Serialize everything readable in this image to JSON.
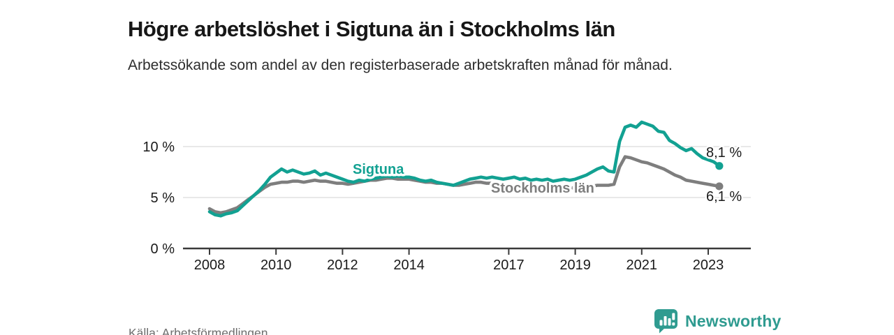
{
  "header": {
    "title": "Högre arbetslöshet i Sigtuna än i Stockholms län",
    "subtitle": "Arbetssökande som andel av den registerbaserade arbetskraften månad för månad."
  },
  "footer": {
    "source": "Källa: Arbetsförmedlingen",
    "brand": "Newsworthy",
    "brand_color": "#2f9b90",
    "brand_icon": "bar-chart-speech-bubble-icon"
  },
  "chart_data": {
    "type": "line",
    "title": "Högre arbetslöshet i Sigtuna än i Stockholms län",
    "subtitle": "Arbetssökande som andel av den registerbaserade arbetskraften månad för månad.",
    "unit": "%",
    "grid": "horizontal",
    "legend": "inline-labels",
    "x_start_year": 2008.0,
    "x_step_years": 0.1666667,
    "x_axis": {
      "ticks": [
        {
          "label": "2008",
          "value": 2008
        },
        {
          "label": "2010",
          "value": 2010
        },
        {
          "label": "2012",
          "value": 2012
        },
        {
          "label": "2014",
          "value": 2014
        },
        {
          "label": "2017",
          "value": 2017
        },
        {
          "label": "2019",
          "value": 2019
        },
        {
          "label": "2021",
          "value": 2021
        },
        {
          "label": "2023",
          "value": 2023
        }
      ]
    },
    "y_axis": {
      "ticks": [
        {
          "label": "0 %",
          "value": 0
        },
        {
          "label": "5 %",
          "value": 5
        },
        {
          "label": "10 %",
          "value": 10
        }
      ],
      "range": [
        0,
        13
      ]
    },
    "series": [
      {
        "id": "stockholm",
        "name": "Stockholms län",
        "color": "#7e7e7e",
        "end_label": "6,1 %",
        "latest_value": 6.1,
        "values": [
          3.9,
          3.6,
          3.5,
          3.6,
          3.8,
          4.0,
          4.4,
          4.8,
          5.2,
          5.6,
          6.0,
          6.3,
          6.4,
          6.5,
          6.5,
          6.6,
          6.6,
          6.5,
          6.6,
          6.7,
          6.6,
          6.6,
          6.5,
          6.4,
          6.4,
          6.3,
          6.4,
          6.5,
          6.6,
          6.7,
          6.7,
          6.8,
          6.9,
          6.9,
          6.8,
          6.8,
          6.8,
          6.7,
          6.6,
          6.5,
          6.5,
          6.4,
          6.4,
          6.3,
          6.2,
          6.2,
          6.3,
          6.4,
          6.5,
          6.5,
          6.4,
          6.4,
          6.3,
          6.2,
          6.2,
          6.1,
          6.1,
          6.0,
          6.0,
          5.9,
          5.9,
          5.9,
          5.8,
          5.8,
          5.9,
          5.9,
          6.0,
          6.0,
          6.1,
          6.1,
          6.2,
          6.2,
          6.2,
          6.3,
          8.0,
          9.0,
          8.9,
          8.7,
          8.5,
          8.4,
          8.2,
          8.0,
          7.8,
          7.5,
          7.2,
          7.0,
          6.7,
          6.6,
          6.5,
          6.4,
          6.3,
          6.2,
          6.1
        ]
      },
      {
        "id": "sigtuna",
        "name": "Sigtuna",
        "color": "#12a192",
        "end_label": "8,1 %",
        "latest_value": 8.1,
        "values": [
          3.6,
          3.3,
          3.2,
          3.4,
          3.5,
          3.7,
          4.2,
          4.7,
          5.2,
          5.7,
          6.3,
          7.0,
          7.4,
          7.8,
          7.5,
          7.7,
          7.5,
          7.3,
          7.4,
          7.6,
          7.2,
          7.4,
          7.2,
          7.0,
          6.8,
          6.6,
          6.5,
          6.7,
          6.6,
          6.8,
          6.9,
          7.0,
          7.1,
          7.0,
          7.1,
          7.0,
          7.0,
          6.9,
          6.7,
          6.6,
          6.7,
          6.5,
          6.4,
          6.3,
          6.2,
          6.4,
          6.6,
          6.8,
          6.9,
          7.0,
          6.9,
          7.0,
          6.9,
          6.8,
          6.9,
          7.0,
          6.8,
          6.9,
          6.7,
          6.8,
          6.7,
          6.8,
          6.6,
          6.7,
          6.8,
          6.7,
          6.8,
          7.0,
          7.2,
          7.5,
          7.8,
          8.0,
          7.6,
          7.5,
          10.5,
          11.9,
          12.1,
          11.9,
          12.4,
          12.2,
          12.0,
          11.5,
          11.4,
          10.6,
          10.3,
          9.9,
          9.6,
          9.8,
          9.3,
          8.9,
          8.7,
          8.5,
          8.1
        ]
      }
    ]
  }
}
